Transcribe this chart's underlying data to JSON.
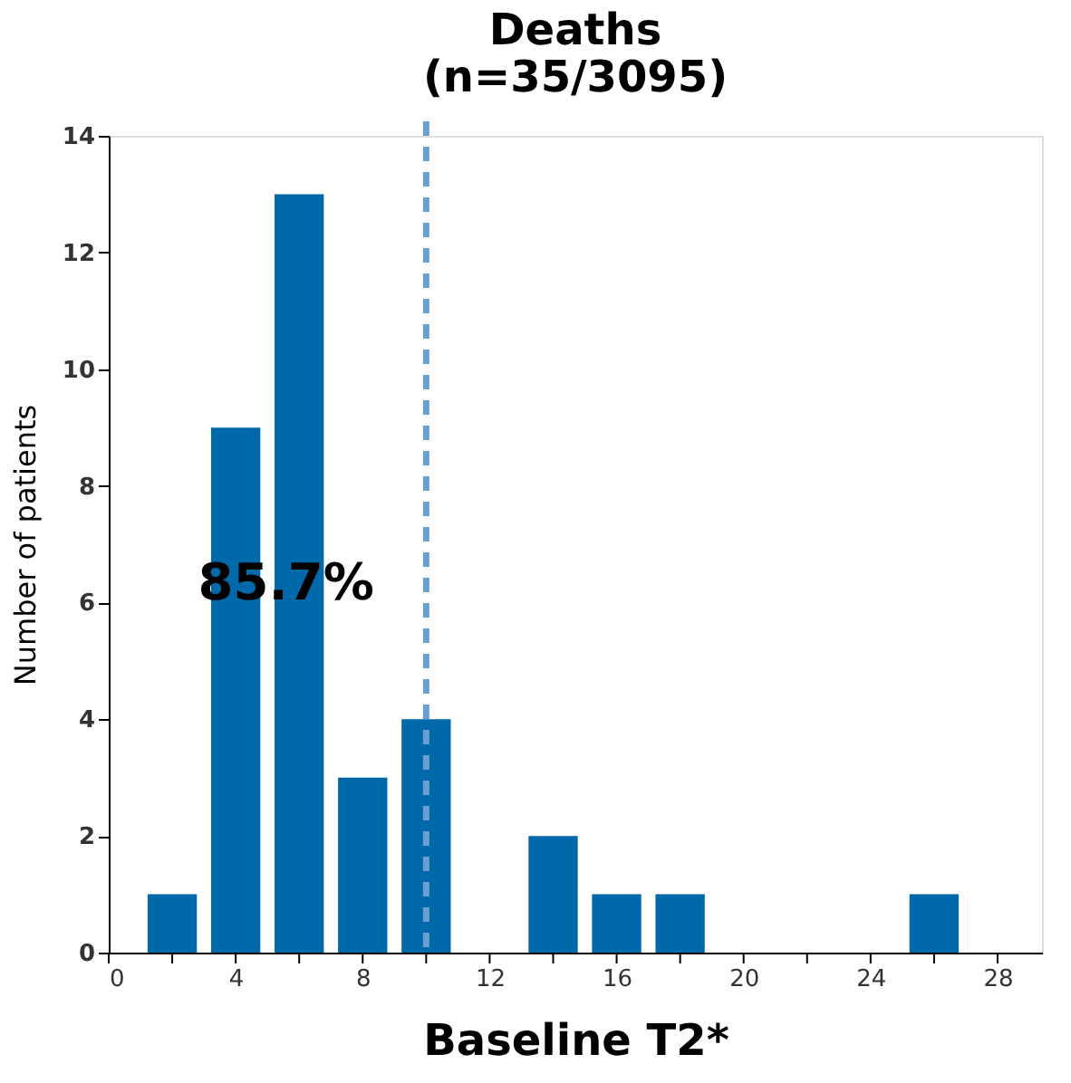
{
  "chart_data": {
    "type": "bar",
    "title": [
      "Deaths",
      "(n=35/3095)"
    ],
    "xlabel": "Baseline T2*",
    "ylabel": "Number of patients",
    "x": [
      2,
      4,
      6,
      8,
      10,
      12,
      14,
      16,
      18,
      20,
      22,
      24,
      26
    ],
    "values": [
      1,
      9,
      13,
      3,
      4,
      0,
      2,
      1,
      1,
      0,
      0,
      0,
      1
    ],
    "color": "#0069aa",
    "xlim": [
      0,
      29.4
    ],
    "xticks": [
      0,
      {
        "value": 2,
        "label": null
      },
      4,
      {
        "value": 6,
        "label": null
      },
      8,
      {
        "value": 10,
        "label": null
      },
      12,
      {
        "value": 14,
        "label": null
      },
      16,
      {
        "value": 18,
        "label": null
      },
      20,
      {
        "value": 22,
        "label": null
      },
      24,
      {
        "value": 26,
        "label": null
      },
      28
    ],
    "ylim": [
      0,
      14
    ],
    "yticks": [
      0,
      2,
      4,
      6,
      8,
      10,
      12,
      14
    ],
    "ref_lines": [
      {
        "axis": "x",
        "value": 10,
        "label": null,
        "color": "#6a9fd4",
        "line_style": "dashed"
      }
    ],
    "annotations": [
      "85.7%"
    ],
    "grid": false
  }
}
